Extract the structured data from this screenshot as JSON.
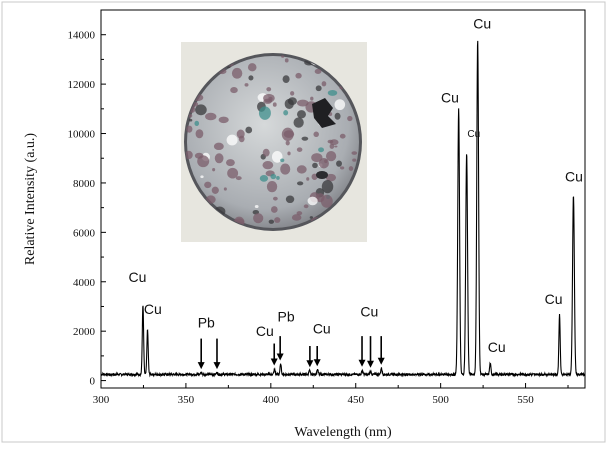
{
  "chart_data": {
    "type": "line",
    "title": "",
    "xlabel": "Wavelength (nm)",
    "ylabel": "Relative Intensity (a.u.)",
    "xlim": [
      300,
      585
    ],
    "ylim": [
      -300,
      15000
    ],
    "x_ticks": [
      300,
      350,
      400,
      450,
      500,
      550
    ],
    "y_ticks": [
      0,
      2000,
      4000,
      6000,
      8000,
      10000,
      12000,
      14000
    ],
    "grid": false,
    "legend": "none",
    "line_color": "#000000",
    "baseline": 250,
    "peaks": [
      {
        "x": 324.7,
        "y": 3050
      },
      {
        "x": 327.4,
        "y": 2050
      },
      {
        "x": 359.0,
        "y": 330
      },
      {
        "x": 368.3,
        "y": 330
      },
      {
        "x": 402.2,
        "y": 450
      },
      {
        "x": 405.8,
        "y": 650
      },
      {
        "x": 422.8,
        "y": 400
      },
      {
        "x": 427.5,
        "y": 450
      },
      {
        "x": 453.9,
        "y": 420
      },
      {
        "x": 458.7,
        "y": 380
      },
      {
        "x": 465.1,
        "y": 500
      },
      {
        "x": 510.6,
        "y": 11000
      },
      {
        "x": 515.3,
        "y": 9200
      },
      {
        "x": 521.8,
        "y": 13800
      },
      {
        "x": 529.2,
        "y": 700
      },
      {
        "x": 570.0,
        "y": 2650
      },
      {
        "x": 578.2,
        "y": 7500
      }
    ],
    "annotations": [
      {
        "label": "Cu",
        "x": 321.5,
        "y": 4000,
        "size": "large"
      },
      {
        "label": "Cu",
        "x": 330.5,
        "y": 2700,
        "size": "large"
      },
      {
        "label": "Pb",
        "x": 362.0,
        "y": 2150,
        "size": "large"
      },
      {
        "label": "Cu",
        "x": 396.5,
        "y": 1800,
        "size": "large"
      },
      {
        "label": "Pb",
        "x": 409.0,
        "y": 2400,
        "size": "large"
      },
      {
        "label": "Cu",
        "x": 430.0,
        "y": 1900,
        "size": "large"
      },
      {
        "label": "Cu",
        "x": 458.0,
        "y": 2600,
        "size": "large"
      },
      {
        "label": "Cu",
        "x": 505.5,
        "y": 11250,
        "size": "large"
      },
      {
        "label": "Cu",
        "x": 519.5,
        "y": 9850,
        "size": "small"
      },
      {
        "label": "Cu",
        "x": 524.5,
        "y": 14250,
        "size": "large"
      },
      {
        "label": "Cu",
        "x": 533.0,
        "y": 1150,
        "size": "large"
      },
      {
        "label": "Cu",
        "x": 566.5,
        "y": 3100,
        "size": "large"
      },
      {
        "label": "Cu",
        "x": 578.5,
        "y": 8050,
        "size": "large"
      }
    ],
    "arrows": [
      {
        "x": 359.0,
        "y_from": 1700,
        "y_to": 300
      },
      {
        "x": 368.3,
        "y_from": 1700,
        "y_to": 300
      },
      {
        "x": 402.0,
        "y_from": 1500,
        "y_to": 450
      },
      {
        "x": 405.5,
        "y_from": 1800,
        "y_to": 650
      },
      {
        "x": 423.0,
        "y_from": 1400,
        "y_to": 380
      },
      {
        "x": 427.3,
        "y_from": 1400,
        "y_to": 420
      },
      {
        "x": 453.7,
        "y_from": 1800,
        "y_to": 400
      },
      {
        "x": 458.7,
        "y_from": 1800,
        "y_to": 360
      },
      {
        "x": 465.0,
        "y_from": 1800,
        "y_to": 480
      }
    ],
    "inset_image": {
      "shape": "disc",
      "colors": [
        "#c4c8c9",
        "#7b5d6b",
        "#3a3a3c",
        "#3f8f8c",
        "#ffffff"
      ]
    }
  }
}
